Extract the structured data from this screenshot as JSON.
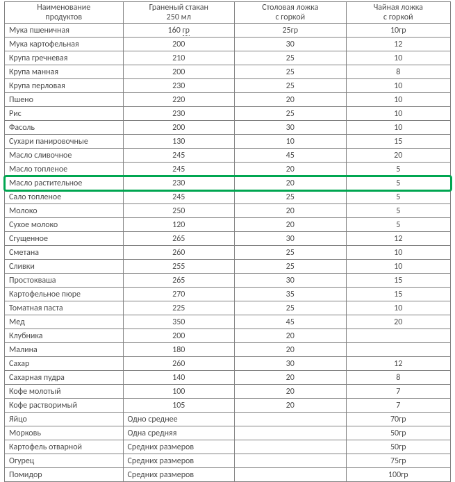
{
  "border_color": "#808080",
  "highlight_color": "#00a651",
  "highlight_row_index": 11,
  "columns": [
    {
      "line1": "Наименование",
      "line2": "продуктов"
    },
    {
      "line1": "Граненый стакан",
      "line2": "250 мл"
    },
    {
      "line1": "Столовая ложка",
      "line2": "с горкой"
    },
    {
      "line1": "Чайная ложка",
      "line2": "с горкой"
    }
  ],
  "rows": [
    {
      "name": "Мука пшеничная",
      "glass": "160",
      "glass_suffix": "гр",
      "glass_suffix_underline": true,
      "tablespoon": "25гр",
      "teaspoon": "10гр"
    },
    {
      "name": "Мука картофельная",
      "glass": "200",
      "tablespoon": "30",
      "teaspoon": "12"
    },
    {
      "name": "Крупа гречневая",
      "glass": "210",
      "tablespoon": "25",
      "teaspoon": "10"
    },
    {
      "name": "Крупа манная",
      "glass": "200",
      "tablespoon": "25",
      "teaspoon": "8"
    },
    {
      "name": "Крупа перловая",
      "glass": "230",
      "tablespoon": "25",
      "teaspoon": "10"
    },
    {
      "name": "Пшено",
      "glass": "220",
      "tablespoon": "20",
      "teaspoon": "10"
    },
    {
      "name": "Рис",
      "glass": "230",
      "tablespoon": "25",
      "teaspoon": "10"
    },
    {
      "name": "Фасоль",
      "glass": "200",
      "tablespoon": "30",
      "teaspoon": "10"
    },
    {
      "name": "Сухари панировочные",
      "glass": "130",
      "tablespoon": "10",
      "teaspoon": "15"
    },
    {
      "name": "Масло сливочное",
      "glass": "245",
      "tablespoon": "45",
      "teaspoon": "20"
    },
    {
      "name": "Масло топленое",
      "glass": "245",
      "tablespoon": "20",
      "teaspoon": "5"
    },
    {
      "name": "Масло растительное",
      "glass": "230",
      "tablespoon": "20",
      "teaspoon": "5"
    },
    {
      "name": "Сало топленое",
      "glass": "245",
      "tablespoon": "25",
      "teaspoon": "5"
    },
    {
      "name": "Молоко",
      "glass": "250",
      "tablespoon": "20",
      "teaspoon": "5"
    },
    {
      "name": "Сухое молоко",
      "glass": "120",
      "tablespoon": "20",
      "teaspoon": "5"
    },
    {
      "name": "Сгущенное",
      "glass": "265",
      "tablespoon": "30",
      "teaspoon": "12"
    },
    {
      "name": "Сметана",
      "glass": "260",
      "tablespoon": "25",
      "teaspoon": "10"
    },
    {
      "name": "Сливки",
      "glass": "255",
      "tablespoon": "25",
      "teaspoon": "10"
    },
    {
      "name": "Простокваша",
      "glass": "265",
      "tablespoon": "30",
      "teaspoon": "15"
    },
    {
      "name": "Картофельное пюре",
      "glass": "270",
      "tablespoon": "35",
      "teaspoon": "15"
    },
    {
      "name": "Томатная паста",
      "glass": "225",
      "tablespoon": "25",
      "teaspoon": "10"
    },
    {
      "name": "Мед",
      "glass": "350",
      "tablespoon": "45",
      "teaspoon": "20"
    },
    {
      "name": "Клубника",
      "glass": "200",
      "tablespoon": "20",
      "teaspoon": ""
    },
    {
      "name": "Малина",
      "glass": "180",
      "tablespoon": "20",
      "teaspoon": ""
    },
    {
      "name": "Сахар",
      "glass": "260",
      "tablespoon": "30",
      "teaspoon": "12"
    },
    {
      "name": "Сахарная пудра",
      "glass": "140",
      "tablespoon": "20",
      "teaspoon": "8"
    },
    {
      "name": "Кофе молотый",
      "glass": "100",
      "tablespoon": "20",
      "teaspoon": "7"
    },
    {
      "name": "Кофе растворимый",
      "glass": "105",
      "tablespoon": "20",
      "teaspoon": "7"
    },
    {
      "name": "Яйцо",
      "glass_text": "Одно среднее",
      "tablespoon": "",
      "teaspoon": "70гр"
    },
    {
      "name": "Морковь",
      "glass_text": "Одна средняя",
      "tablespoon": "",
      "teaspoon": "50гр"
    },
    {
      "name": "Картофель отварной",
      "glass_text": "Средних размеров",
      "tablespoon": "",
      "teaspoon": "50гр"
    },
    {
      "name": "Огурец",
      "glass_text": "Средних размеров",
      "tablespoon": "",
      "teaspoon": "75гр"
    },
    {
      "name": "Помидор",
      "glass_text": "Средних размеров",
      "tablespoon": "",
      "teaspoon": "100гр"
    }
  ]
}
